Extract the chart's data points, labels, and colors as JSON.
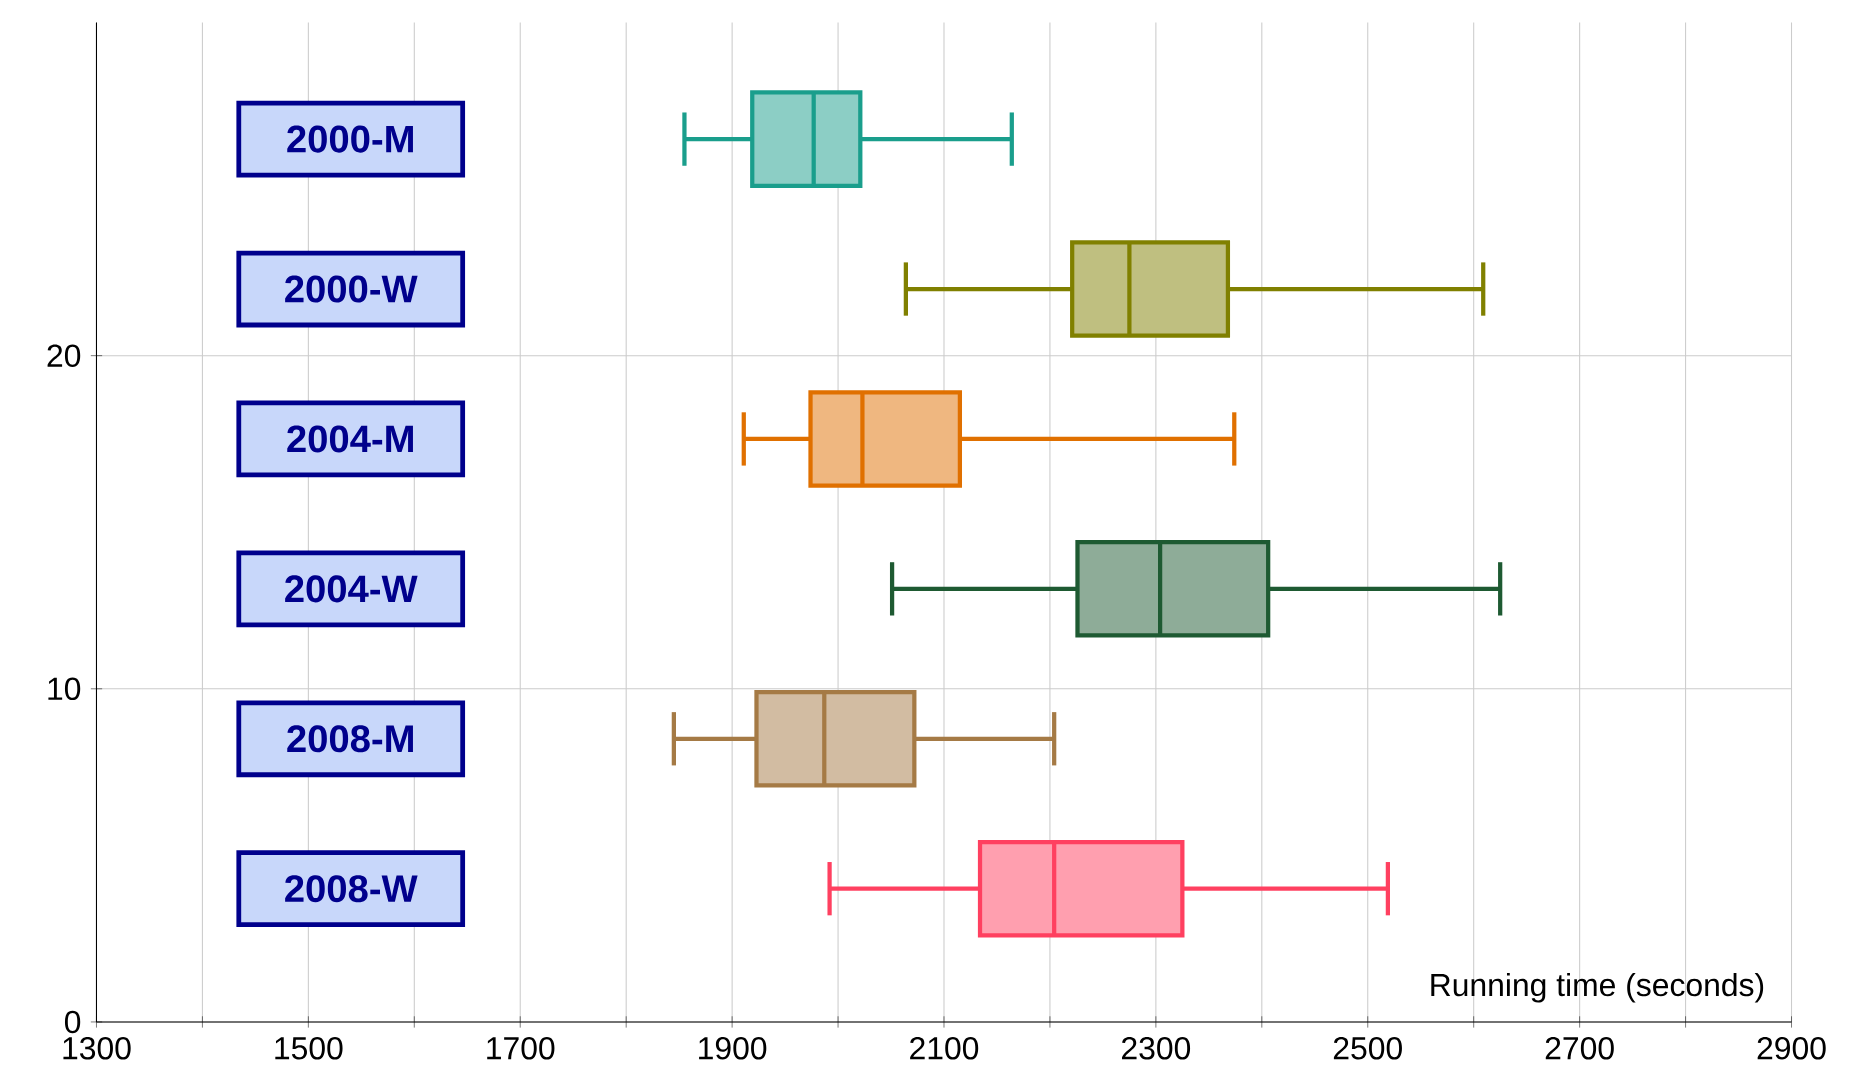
{
  "chart_data": {
    "type": "box",
    "orientation": "horizontal",
    "xlabel": "Running time (seconds)",
    "categories": [
      "2000-M",
      "2000-W",
      "2004-M",
      "2004-W",
      "2008-M",
      "2008-W"
    ],
    "colors": [
      "#1a9e8c",
      "#808000",
      "#e07000",
      "#1e5a32",
      "#a57a45",
      "#ff4060"
    ],
    "boxes": [
      {
        "low": 1855,
        "q1": 1919,
        "median": 1977,
        "q3": 2021,
        "high": 2164
      },
      {
        "low": 2064,
        "q1": 2221,
        "median": 2275,
        "q3": 2368,
        "high": 2609
      },
      {
        "low": 1911,
        "q1": 1974,
        "median": 2023,
        "q3": 2115,
        "high": 2374
      },
      {
        "low": 2051,
        "q1": 2226,
        "median": 2304,
        "q3": 2406,
        "high": 2625
      },
      {
        "low": 1845,
        "q1": 1923,
        "median": 1987,
        "q3": 2072,
        "high": 2204
      },
      {
        "low": 1992,
        "q1": 2134,
        "median": 2204,
        "q3": 2325,
        "high": 2519
      }
    ],
    "xlim": [
      1300,
      2900
    ],
    "xticks": [
      1300,
      {
        "value": 1400,
        "label": null
      },
      1500,
      {
        "value": 1600,
        "label": null
      },
      1700,
      {
        "value": 1800,
        "label": null
      },
      1900,
      {
        "value": 2000,
        "label": null
      },
      2100,
      {
        "value": 2200,
        "label": null
      },
      2300,
      {
        "value": 2400,
        "label": null
      },
      2500,
      {
        "value": 2600,
        "label": null
      },
      2700,
      {
        "value": 2800,
        "label": null
      },
      2900
    ],
    "annotations": [
      "0",
      "10",
      "20"
    ],
    "grid": true
  }
}
